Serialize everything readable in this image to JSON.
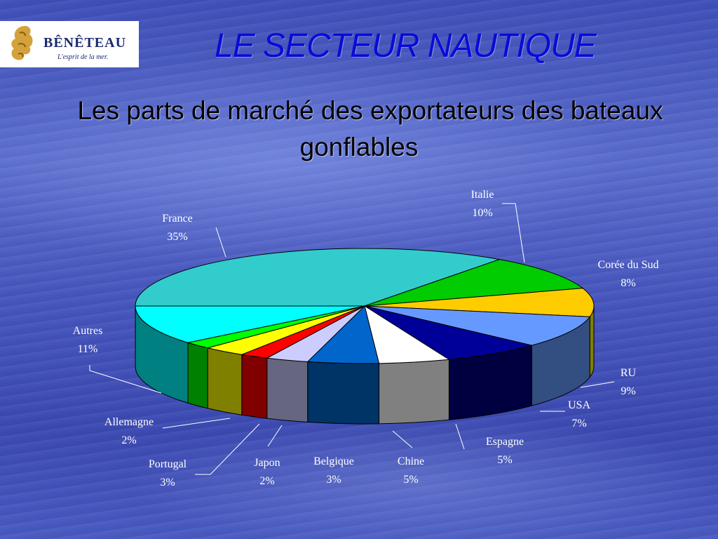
{
  "logo": {
    "brand": "BÊNÊTEAU",
    "tagline": "L'esprit de la mer."
  },
  "slide": {
    "title": "LE SECTEUR NAUTIQUE",
    "subtitle_line1": "Les parts de marché des exportateurs des bateaux",
    "subtitle_line2": "gonflables"
  },
  "chart_data": {
    "type": "pie",
    "style": "3d",
    "title": "",
    "categories": [
      "France",
      "Italie",
      "Corée du Sud",
      "RU",
      "USA",
      "Espagne",
      "Chine",
      "Belgique",
      "Japon",
      "Portugal",
      "Allemagne",
      "Autres"
    ],
    "values": [
      35,
      10,
      8,
      9,
      7,
      5,
      5,
      3,
      2,
      3,
      2,
      11
    ],
    "value_labels": [
      "35%",
      "10%",
      "8%",
      "9%",
      "7%",
      "5%",
      "5%",
      "3%",
      "2%",
      "3%",
      "2%",
      "11%"
    ],
    "colors": [
      "#33cccc",
      "#00cc00",
      "#ffcc00",
      "#6699ff",
      "#000099",
      "#ffffff",
      "#0066cc",
      "#ccccff",
      "#ff0000",
      "#ffff00",
      "#00ff00",
      "#00ffff"
    ],
    "side_colors": [
      "#1e8f8f",
      "#008000",
      "#808000",
      "#334e80",
      "#000040",
      "#808080",
      "#003366",
      "#666680",
      "#800000",
      "#808000",
      "#008000",
      "#008080"
    ]
  }
}
